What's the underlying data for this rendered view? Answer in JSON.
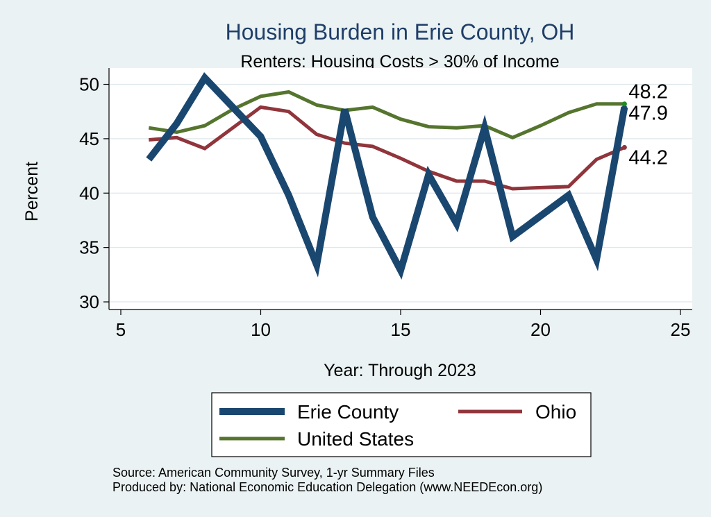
{
  "chart_data": {
    "type": "line",
    "title": "Housing Burden in Erie County, OH",
    "subtitle": "Renters: Housing Costs > 30% of Income",
    "xlabel": "Year: Through 2023",
    "ylabel": "Percent",
    "xlim": [
      5,
      25
    ],
    "ylim": [
      29.3,
      51.5
    ],
    "xticks": [
      5,
      10,
      15,
      20,
      25
    ],
    "yticks": [
      30,
      35,
      40,
      45,
      50
    ],
    "xtick_labels": [
      "5",
      "10",
      "15",
      "20",
      "25"
    ],
    "ytick_labels": [
      "30",
      "35",
      "40",
      "45",
      "50"
    ],
    "grid": true,
    "legend_position": "bottom",
    "series": [
      {
        "name": "Erie County",
        "color": "#1a476f",
        "x": [
          6,
          7,
          8,
          9,
          10,
          11,
          12,
          13,
          14,
          15,
          16,
          17,
          18,
          19,
          20,
          21,
          22,
          23
        ],
        "values": [
          43.1,
          46.4,
          50.6,
          47.9,
          45.2,
          39.8,
          33.4,
          47.7,
          37.8,
          32.9,
          41.7,
          37.2,
          46.0,
          36.0,
          37.9,
          39.8,
          33.9,
          47.9
        ],
        "end_label": "47.9"
      },
      {
        "name": "Ohio",
        "color": "#90353b",
        "x": [
          6,
          7,
          8,
          9,
          10,
          11,
          12,
          13,
          14,
          15,
          16,
          17,
          18,
          19,
          20,
          21,
          22,
          23
        ],
        "values": [
          44.9,
          45.1,
          44.1,
          46.0,
          47.9,
          47.5,
          45.4,
          44.6,
          44.3,
          43.2,
          42.0,
          41.1,
          41.1,
          40.4,
          40.5,
          40.6,
          43.1,
          44.2
        ],
        "end_label": "44.2"
      },
      {
        "name": "United States",
        "color": "#55752f",
        "x": [
          6,
          7,
          8,
          9,
          10,
          11,
          12,
          13,
          14,
          15,
          16,
          17,
          18,
          19,
          20,
          21,
          22,
          23
        ],
        "values": [
          46.0,
          45.6,
          46.2,
          47.7,
          48.9,
          49.3,
          48.1,
          47.6,
          47.9,
          46.8,
          46.1,
          46.0,
          46.2,
          45.1,
          46.2,
          47.4,
          48.2,
          48.2
        ],
        "end_label": "48.2"
      }
    ],
    "notes": [
      "Source: American Community Survey, 1-yr Summary Files",
      "Produced by: National Economic Education Delegation (www.NEEDEcon.org)"
    ]
  }
}
